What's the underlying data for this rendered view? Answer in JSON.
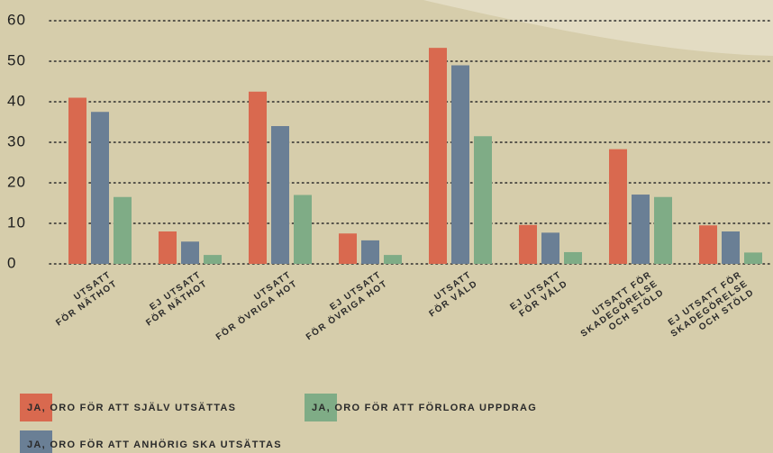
{
  "chart_data": {
    "type": "bar",
    "categories": [
      "UTSATT\nFÖR NÄTHOT",
      "EJ UTSATT\nFÖR NÄTHOT",
      "UTSATT\nFÖR ÖVRIGA HOT",
      "EJ UTSATT\nFÖR ÖVRIGA HOT",
      "UTSATT\nFÖR VÅLD",
      "EJ UTSATT\nFÖR VÅLD",
      "UTSATT FÖR\nSKADEGÖRELSE\nOCH STÖLD",
      "EJ UTSATT FÖR\nSKADEGÖRELSE\nOCH STÖLD"
    ],
    "series": [
      {
        "name": "JA, ORO FÖR ATT SJÄLV UTSÄTTAS",
        "color": "#d9694f",
        "values": [
          41,
          8,
          42.5,
          7.5,
          53.3,
          9.6,
          28.3,
          9.5
        ]
      },
      {
        "name": "JA, ORO FÖR ATT ANHÖRIG SKA UTSÄTTAS",
        "color": "#6a7f95",
        "values": [
          37.5,
          5.5,
          34,
          5.8,
          49,
          7.7,
          17.1,
          8
        ]
      },
      {
        "name": "JA, ORO FÖR ATT FÖRLORA UPPDRAG",
        "color": "#7fac86",
        "values": [
          16.5,
          2.2,
          17,
          2.2,
          31.5,
          2.9,
          16.5,
          2.8
        ]
      }
    ],
    "ylim": [
      0,
      60
    ],
    "yticks": [
      0,
      10,
      20,
      30,
      40,
      50,
      60
    ],
    "grid": true
  }
}
